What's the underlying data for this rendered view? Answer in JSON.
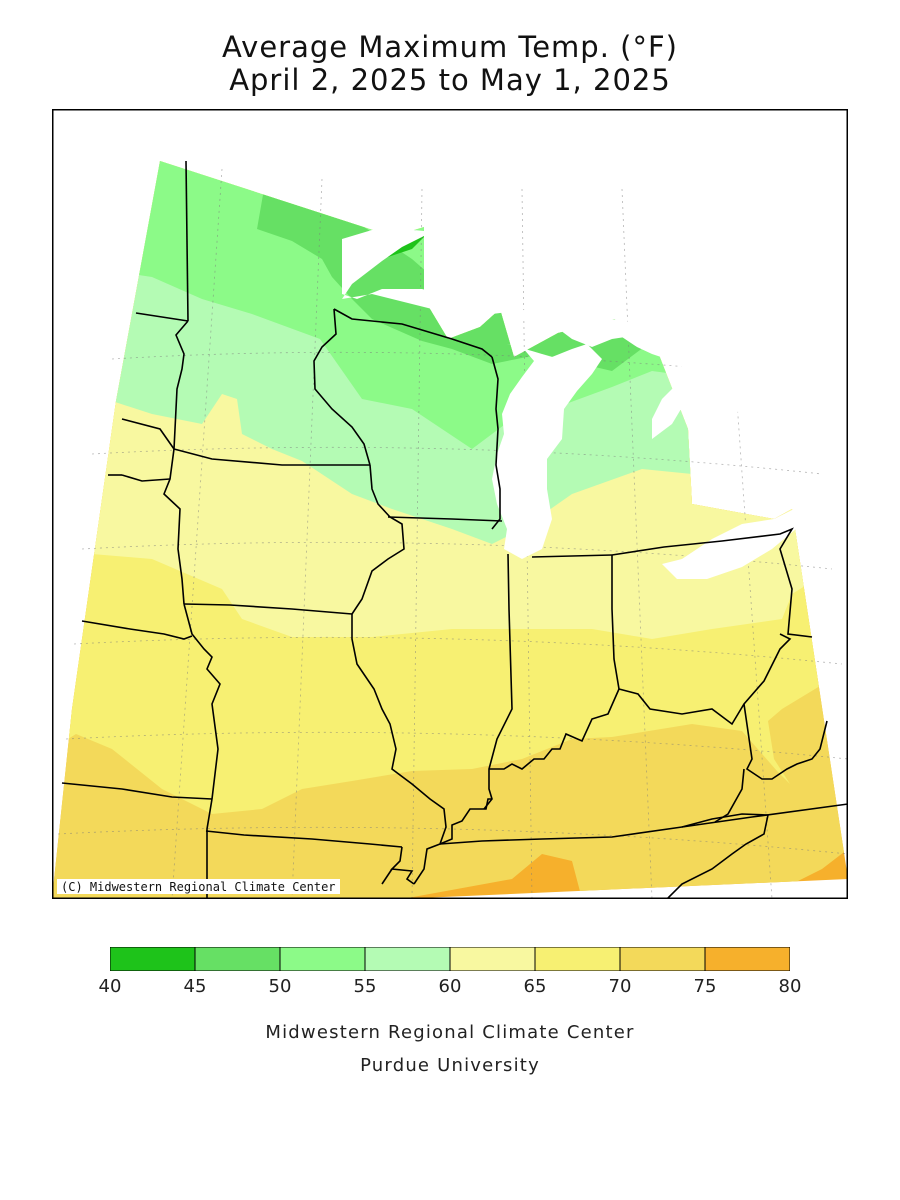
{
  "title": {
    "line1": "Average Maximum Temp. (°F)",
    "line2": "April 2, 2025 to May 1, 2025"
  },
  "map": {
    "region": "Upper Midwest",
    "copyright": "(C) Midwestern Regional Climate Center"
  },
  "legend": {
    "bins": [
      {
        "min": 40,
        "max": 45,
        "color": "#1ec31a"
      },
      {
        "min": 45,
        "max": 50,
        "color": "#66e064"
      },
      {
        "min": 50,
        "max": 55,
        "color": "#8cfa88"
      },
      {
        "min": 55,
        "max": 60,
        "color": "#b4fbb4"
      },
      {
        "min": 60,
        "max": 65,
        "color": "#f8f8a0"
      },
      {
        "min": 65,
        "max": 70,
        "color": "#f7f072"
      },
      {
        "min": 70,
        "max": 75,
        "color": "#f3d95a"
      },
      {
        "min": 75,
        "max": 80,
        "color": "#f6b02c"
      }
    ],
    "tick_labels": [
      "40",
      "45",
      "50",
      "55",
      "60",
      "65",
      "70",
      "75",
      "80"
    ]
  },
  "credits": {
    "line1": "Midwestern Regional Climate Center",
    "line2": "Purdue University"
  }
}
